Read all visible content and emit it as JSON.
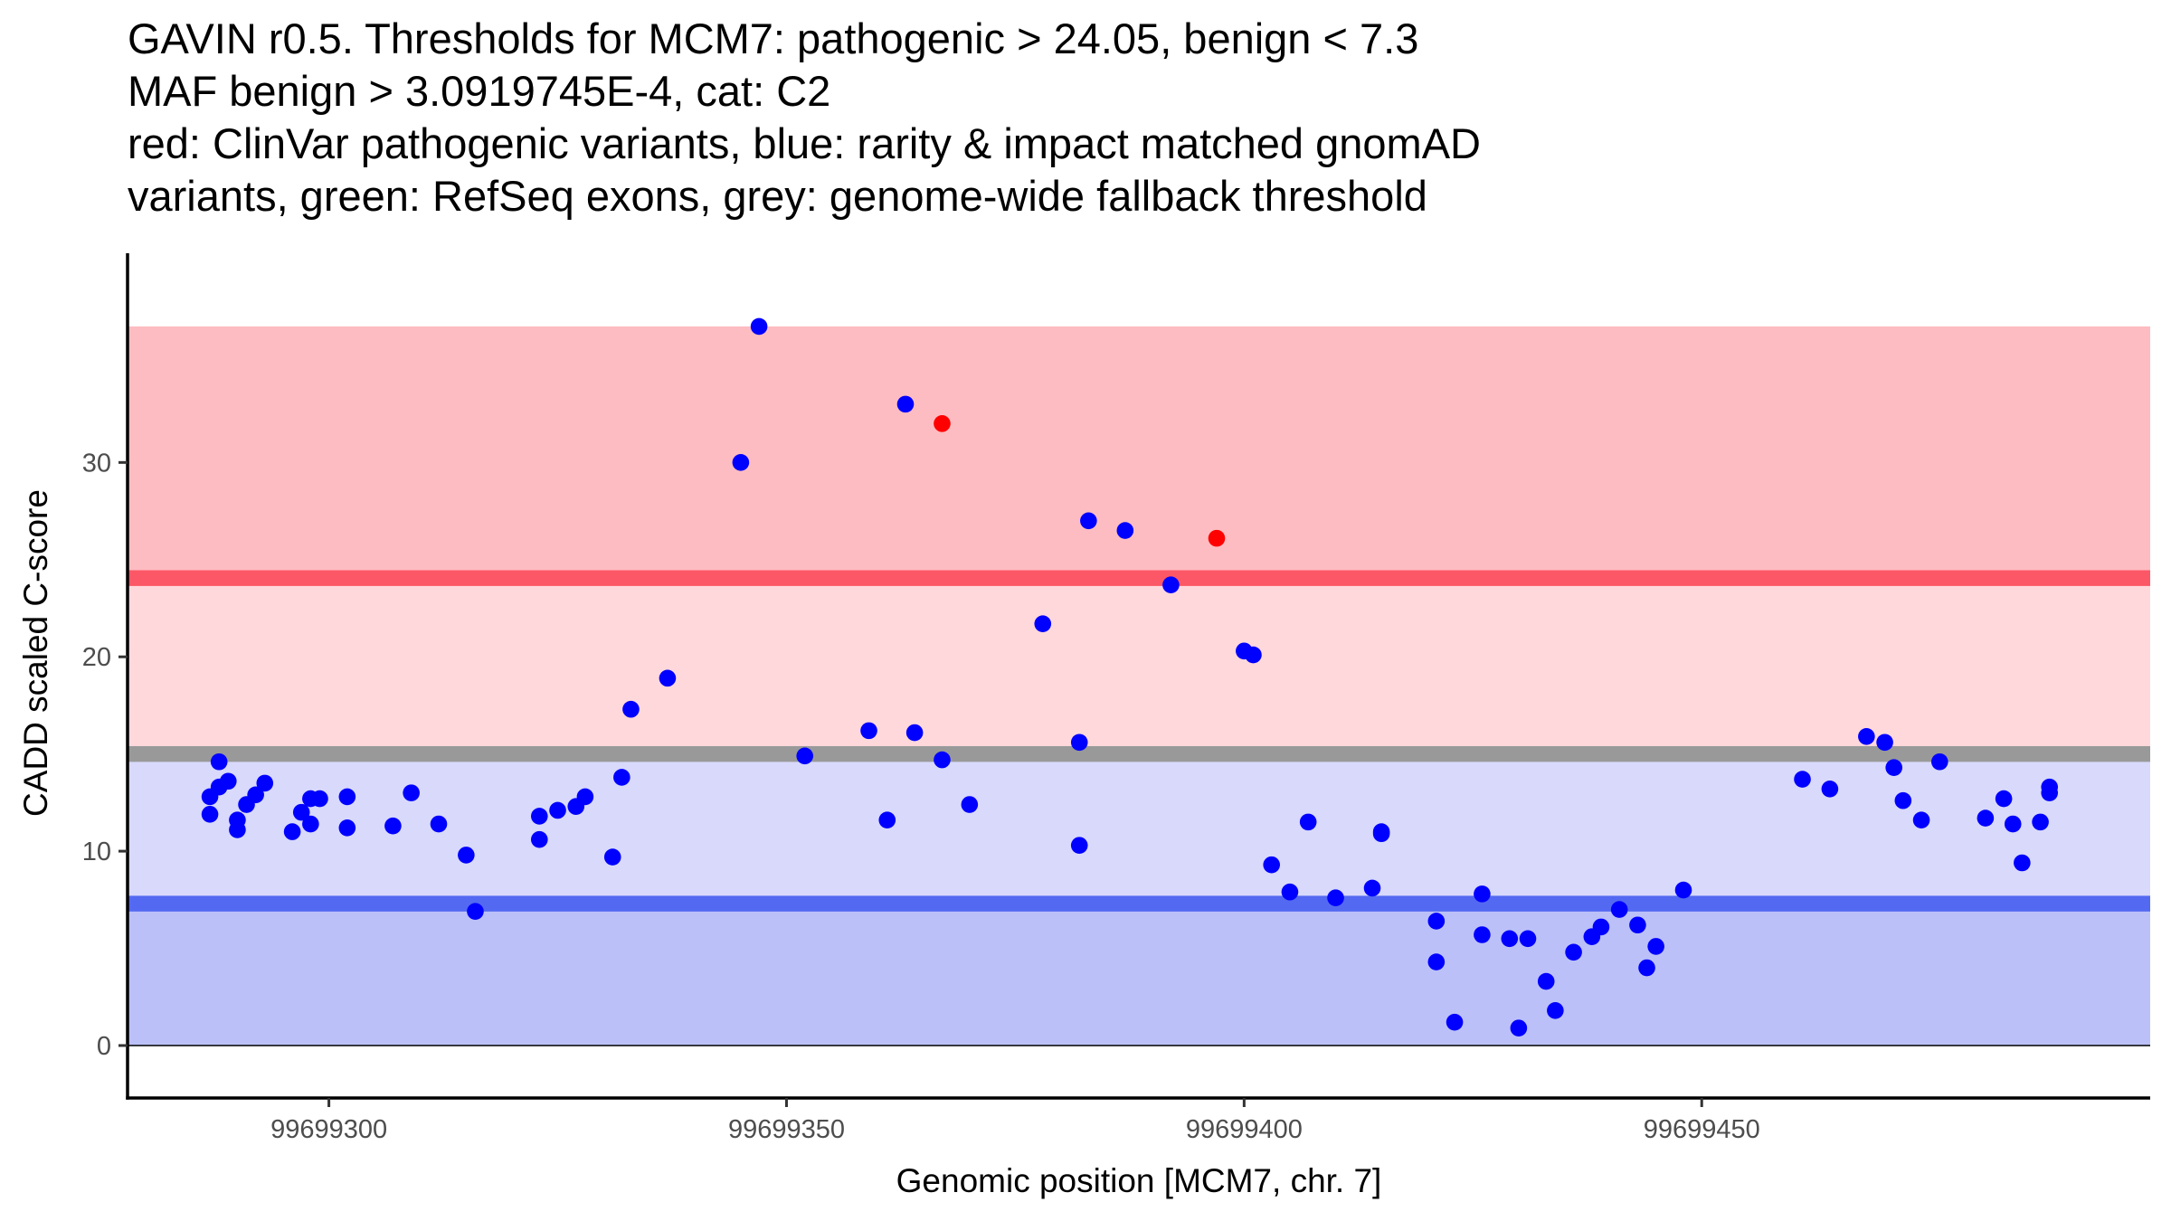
{
  "chart_data": {
    "type": "scatter",
    "title_lines": [
      "GAVIN r0.5. Thresholds for MCM7: pathogenic > 24.05, benign < 7.3",
      "MAF benign > 3.0919745E-4, cat: C2",
      "red: ClinVar pathogenic variants, blue: rarity & impact matched gnomAD",
      "variants, green: RefSeq exons, grey: genome-wide fallback threshold"
    ],
    "xlabel": "Genomic position [MCM7, chr. 7]",
    "ylabel": "CADD scaled C-score",
    "xlim": [
      99699278,
      99699499
    ],
    "ylim": [
      -2.7,
      40.3
    ],
    "x_ticks": [
      99699300,
      99699350,
      99699400,
      99699450
    ],
    "x_tick_labels": [
      "99699300",
      "99699350",
      "99699400",
      "99699450"
    ],
    "y_ticks": [
      0,
      10,
      20,
      30
    ],
    "y_tick_labels": [
      "0",
      "10",
      "20",
      "30"
    ],
    "grid": false,
    "legend": "none",
    "bands": [
      {
        "name": "pathogenic-region",
        "ymin": 24.05,
        "ymax": 37,
        "color": "#fdbcc1"
      },
      {
        "name": "intermediate-upper-region",
        "ymin": 15.0,
        "ymax": 24.05,
        "color": "#ffd8dc"
      },
      {
        "name": "intermediate-lower-region",
        "ymin": 7.3,
        "ymax": 15.0,
        "color": "#d8d9fb"
      },
      {
        "name": "benign-region",
        "ymin": 0,
        "ymax": 7.3,
        "color": "#bbc0f9"
      }
    ],
    "threshold_lines": [
      {
        "name": "pathogenic-threshold",
        "y": 24.05,
        "color": "#fc5766"
      },
      {
        "name": "genome-wide-fallback-threshold",
        "y": 15.0,
        "color": "#999999"
      },
      {
        "name": "benign-threshold",
        "y": 7.3,
        "color": "#5469f1"
      }
    ],
    "series": [
      {
        "name": "ClinVar pathogenic variants",
        "color": "#ff0000",
        "points": [
          {
            "x": 99699367,
            "y": 32.0
          },
          {
            "x": 99699397,
            "y": 26.1
          }
        ]
      },
      {
        "name": "rarity & impact matched gnomAD variants",
        "color": "#0000ff",
        "points": [
          {
            "x": 99699287,
            "y": 12.8
          },
          {
            "x": 99699287,
            "y": 11.9
          },
          {
            "x": 99699288,
            "y": 14.6
          },
          {
            "x": 99699288,
            "y": 13.3
          },
          {
            "x": 99699289,
            "y": 13.6
          },
          {
            "x": 99699290,
            "y": 11.6
          },
          {
            "x": 99699290,
            "y": 11.1
          },
          {
            "x": 99699291,
            "y": 12.4
          },
          {
            "x": 99699292,
            "y": 12.9
          },
          {
            "x": 99699293,
            "y": 13.5
          },
          {
            "x": 99699296,
            "y": 11.0
          },
          {
            "x": 99699297,
            "y": 12.0
          },
          {
            "x": 99699298,
            "y": 12.7
          },
          {
            "x": 99699298,
            "y": 11.4
          },
          {
            "x": 99699299,
            "y": 12.7
          },
          {
            "x": 99699302,
            "y": 12.8
          },
          {
            "x": 99699302,
            "y": 11.2
          },
          {
            "x": 99699307,
            "y": 11.3
          },
          {
            "x": 99699309,
            "y": 13.0
          },
          {
            "x": 99699312,
            "y": 11.4
          },
          {
            "x": 99699315,
            "y": 9.8
          },
          {
            "x": 99699316,
            "y": 6.9
          },
          {
            "x": 99699323,
            "y": 11.8
          },
          {
            "x": 99699323,
            "y": 10.6
          },
          {
            "x": 99699325,
            "y": 12.1
          },
          {
            "x": 99699327,
            "y": 12.3
          },
          {
            "x": 99699328,
            "y": 12.8
          },
          {
            "x": 99699331,
            "y": 9.7
          },
          {
            "x": 99699332,
            "y": 13.8
          },
          {
            "x": 99699333,
            "y": 17.3
          },
          {
            "x": 99699337,
            "y": 18.9
          },
          {
            "x": 99699345,
            "y": 30.0
          },
          {
            "x": 99699347,
            "y": 37.0
          },
          {
            "x": 99699352,
            "y": 14.9
          },
          {
            "x": 99699359,
            "y": 16.2
          },
          {
            "x": 99699361,
            "y": 11.6
          },
          {
            "x": 99699363,
            "y": 33.0
          },
          {
            "x": 99699364,
            "y": 16.1
          },
          {
            "x": 99699367,
            "y": 14.7
          },
          {
            "x": 99699370,
            "y": 12.4
          },
          {
            "x": 99699378,
            "y": 21.7
          },
          {
            "x": 99699382,
            "y": 15.6
          },
          {
            "x": 99699382,
            "y": 10.3
          },
          {
            "x": 99699383,
            "y": 27.0
          },
          {
            "x": 99699387,
            "y": 26.5
          },
          {
            "x": 99699392,
            "y": 23.7
          },
          {
            "x": 99699400,
            "y": 20.3
          },
          {
            "x": 99699401,
            "y": 20.1
          },
          {
            "x": 99699403,
            "y": 9.3
          },
          {
            "x": 99699405,
            "y": 7.9
          },
          {
            "x": 99699407,
            "y": 11.5
          },
          {
            "x": 99699410,
            "y": 7.6
          },
          {
            "x": 99699414,
            "y": 8.1
          },
          {
            "x": 99699415,
            "y": 11.0
          },
          {
            "x": 99699415,
            "y": 10.9
          },
          {
            "x": 99699421,
            "y": 6.4
          },
          {
            "x": 99699421,
            "y": 4.3
          },
          {
            "x": 99699423,
            "y": 1.2
          },
          {
            "x": 99699426,
            "y": 7.8
          },
          {
            "x": 99699426,
            "y": 5.7
          },
          {
            "x": 99699429,
            "y": 5.5
          },
          {
            "x": 99699430,
            "y": 0.9
          },
          {
            "x": 99699431,
            "y": 5.5
          },
          {
            "x": 99699433,
            "y": 3.3
          },
          {
            "x": 99699434,
            "y": 1.8
          },
          {
            "x": 99699436,
            "y": 4.8
          },
          {
            "x": 99699438,
            "y": 5.6
          },
          {
            "x": 99699439,
            "y": 6.1
          },
          {
            "x": 99699441,
            "y": 7.0
          },
          {
            "x": 99699443,
            "y": 6.2
          },
          {
            "x": 99699444,
            "y": 4.0
          },
          {
            "x": 99699445,
            "y": 5.1
          },
          {
            "x": 99699448,
            "y": 8.0
          },
          {
            "x": 99699461,
            "y": 13.7
          },
          {
            "x": 99699464,
            "y": 13.2
          },
          {
            "x": 99699468,
            "y": 15.9
          },
          {
            "x": 99699470,
            "y": 15.6
          },
          {
            "x": 99699471,
            "y": 14.3
          },
          {
            "x": 99699472,
            "y": 12.6
          },
          {
            "x": 99699474,
            "y": 11.6
          },
          {
            "x": 99699476,
            "y": 14.6
          },
          {
            "x": 99699481,
            "y": 11.7
          },
          {
            "x": 99699483,
            "y": 12.7
          },
          {
            "x": 99699484,
            "y": 11.4
          },
          {
            "x": 99699485,
            "y": 9.4
          },
          {
            "x": 99699487,
            "y": 11.5
          },
          {
            "x": 99699488,
            "y": 13.3
          },
          {
            "x": 99699488,
            "y": 13.0
          }
        ]
      }
    ]
  }
}
